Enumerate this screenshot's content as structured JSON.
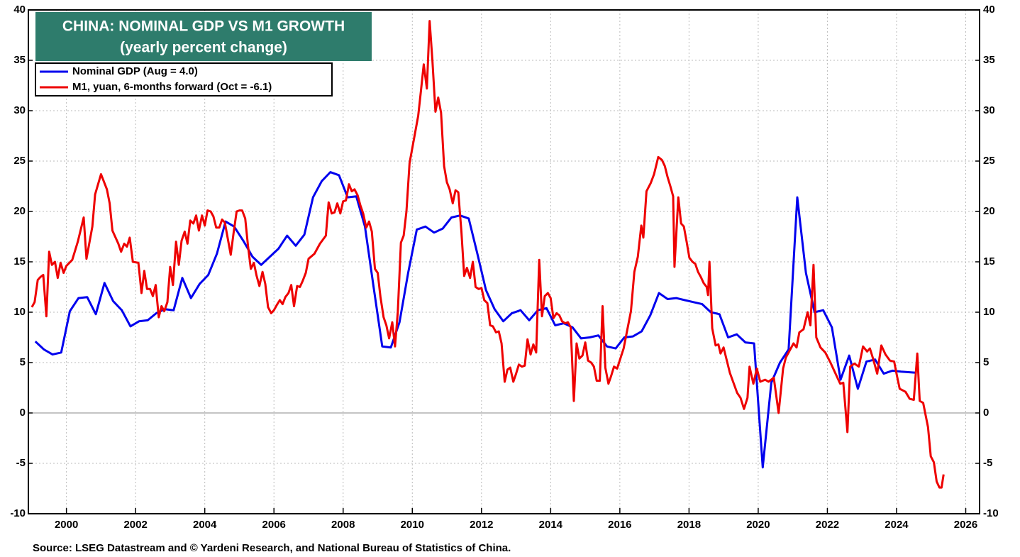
{
  "chart_data": {
    "type": "line",
    "title": "CHINA: NOMINAL GDP VS M1 GROWTH",
    "subtitle": "(yearly percent change)",
    "source": "Source: LSEG Datastream and © Yardeni Research, and National Bureau of Statistics of China.",
    "xlim": [
      1998.9,
      2026.4
    ],
    "xticks": [
      2000,
      2002,
      2004,
      2006,
      2008,
      2010,
      2012,
      2014,
      2016,
      2018,
      2020,
      2022,
      2024,
      2026
    ],
    "ylim": [
      -10,
      40
    ],
    "yticks": [
      -10,
      -5,
      0,
      5,
      10,
      15,
      20,
      25,
      30,
      35,
      40
    ],
    "grid": true,
    "legend": "upper left",
    "series": [
      {
        "name": "Nominal GDP (Aug = 4.0)",
        "color": "#0000ee",
        "x": [
          1999.1,
          1999.35,
          1999.6,
          1999.85,
          2000.1,
          2000.35,
          2000.6,
          2000.85,
          2001.1,
          2001.35,
          2001.6,
          2001.85,
          2002.1,
          2002.35,
          2002.6,
          2002.85,
          2003.1,
          2003.35,
          2003.6,
          2003.85,
          2004.1,
          2004.35,
          2004.6,
          2004.85,
          2005.13,
          2005.38,
          2005.63,
          2005.88,
          2006.13,
          2006.38,
          2006.63,
          2006.88,
          2007.13,
          2007.38,
          2007.63,
          2007.88,
          2008.13,
          2008.38,
          2008.63,
          2008.88,
          2009.13,
          2009.38,
          2009.63,
          2009.88,
          2010.13,
          2010.38,
          2010.63,
          2010.88,
          2011.13,
          2011.38,
          2011.63,
          2011.88,
          2012.13,
          2012.38,
          2012.63,
          2012.88,
          2013.13,
          2013.38,
          2013.63,
          2013.88,
          2014.13,
          2014.38,
          2014.63,
          2014.88,
          2015.13,
          2015.38,
          2015.63,
          2015.88,
          2016.13,
          2016.38,
          2016.63,
          2016.88,
          2017.13,
          2017.38,
          2017.63,
          2017.88,
          2018.13,
          2018.38,
          2018.63,
          2018.88,
          2019.13,
          2019.38,
          2019.63,
          2019.88,
          2020.13,
          2020.38,
          2020.63,
          2020.88,
          2021.13,
          2021.38,
          2021.63,
          2021.88,
          2022.13,
          2022.38,
          2022.63,
          2022.88,
          2023.13,
          2023.38,
          2023.63,
          2023.88,
          2024.13,
          2024.55
        ],
        "values": [
          7.1,
          6.3,
          5.8,
          6.0,
          10.1,
          11.4,
          11.5,
          9.8,
          12.9,
          11.1,
          10.2,
          8.6,
          9.1,
          9.2,
          9.9,
          10.3,
          10.2,
          13.4,
          11.4,
          12.8,
          13.7,
          15.8,
          19.0,
          18.5,
          17.0,
          15.5,
          14.7,
          15.5,
          16.3,
          17.6,
          16.6,
          17.7,
          21.4,
          23.0,
          23.9,
          23.6,
          21.4,
          21.5,
          18.5,
          12.5,
          6.6,
          6.5,
          9.0,
          13.9,
          18.2,
          18.5,
          17.9,
          18.3,
          19.4,
          19.6,
          19.3,
          15.8,
          12.2,
          10.3,
          9.1,
          9.9,
          10.2,
          9.2,
          10.2,
          10.4,
          8.7,
          8.9,
          8.5,
          7.4,
          7.5,
          7.7,
          6.6,
          6.4,
          7.5,
          7.6,
          8.1,
          9.7,
          11.9,
          11.3,
          11.4,
          11.2,
          11.0,
          10.8,
          10.0,
          9.8,
          7.5,
          7.8,
          7.0,
          6.9,
          -5.4,
          3.0,
          5.0,
          6.3,
          21.4,
          13.9,
          10.0,
          10.2,
          8.5,
          3.3,
          5.7,
          2.4,
          5.1,
          5.3,
          3.9,
          4.2,
          4.1,
          4.0
        ]
      },
      {
        "name": "M1, yuan, 6-months forward (Oct = -6.1)",
        "color": "#ee0000",
        "x": [
          1999.0,
          1999.08,
          1999.17,
          1999.25,
          1999.33,
          1999.42,
          1999.5,
          1999.58,
          1999.67,
          1999.75,
          1999.83,
          1999.92,
          2000.0,
          2000.17,
          2000.33,
          2000.5,
          2000.58,
          2000.75,
          2000.83,
          2001.0,
          2001.17,
          2001.25,
          2001.33,
          2001.5,
          2001.58,
          2001.67,
          2001.75,
          2001.83,
          2001.92,
          2002.08,
          2002.17,
          2002.25,
          2002.33,
          2002.42,
          2002.5,
          2002.58,
          2002.67,
          2002.75,
          2002.83,
          2002.92,
          2003.0,
          2003.08,
          2003.17,
          2003.25,
          2003.33,
          2003.42,
          2003.5,
          2003.58,
          2003.67,
          2003.75,
          2003.83,
          2003.92,
          2004.0,
          2004.08,
          2004.17,
          2004.25,
          2004.33,
          2004.42,
          2004.5,
          2004.58,
          2004.67,
          2004.75,
          2004.83,
          2004.92,
          2005.0,
          2005.08,
          2005.17,
          2005.25,
          2005.33,
          2005.42,
          2005.5,
          2005.58,
          2005.67,
          2005.75,
          2005.83,
          2005.92,
          2006.0,
          2006.08,
          2006.17,
          2006.25,
          2006.33,
          2006.42,
          2006.5,
          2006.58,
          2006.67,
          2006.75,
          2006.83,
          2006.92,
          2007.0,
          2007.17,
          2007.33,
          2007.5,
          2007.58,
          2007.67,
          2007.75,
          2007.83,
          2007.92,
          2008.0,
          2008.08,
          2008.17,
          2008.25,
          2008.33,
          2008.42,
          2008.5,
          2008.58,
          2008.67,
          2008.75,
          2008.83,
          2008.92,
          2009.0,
          2009.08,
          2009.17,
          2009.25,
          2009.33,
          2009.42,
          2009.5,
          2009.58,
          2009.67,
          2009.75,
          2009.83,
          2009.92,
          2010.0,
          2010.08,
          2010.17,
          2010.25,
          2010.33,
          2010.42,
          2010.5,
          2010.58,
          2010.67,
          2010.75,
          2010.83,
          2010.92,
          2011.0,
          2011.08,
          2011.17,
          2011.25,
          2011.33,
          2011.42,
          2011.5,
          2011.58,
          2011.67,
          2011.75,
          2011.83,
          2011.92,
          2012.0,
          2012.08,
          2012.17,
          2012.25,
          2012.33,
          2012.42,
          2012.5,
          2012.58,
          2012.67,
          2012.75,
          2012.83,
          2012.92,
          2013.0,
          2013.08,
          2013.17,
          2013.25,
          2013.33,
          2013.42,
          2013.5,
          2013.58,
          2013.67,
          2013.75,
          2013.83,
          2013.92,
          2014.0,
          2014.08,
          2014.17,
          2014.25,
          2014.33,
          2014.42,
          2014.5,
          2014.58,
          2014.67,
          2014.75,
          2014.83,
          2014.92,
          2015.0,
          2015.08,
          2015.17,
          2015.25,
          2015.33,
          2015.42,
          2015.5,
          2015.58,
          2015.67,
          2015.75,
          2015.83,
          2015.92,
          2016.11,
          2016.32,
          2016.42,
          2016.52,
          2016.62,
          2016.68,
          2016.77,
          2016.89,
          2016.99,
          2017.11,
          2017.22,
          2017.3,
          2017.38,
          2017.46,
          2017.54,
          2017.58,
          2017.69,
          2017.77,
          2017.85,
          2017.93,
          2018.01,
          2018.1,
          2018.18,
          2018.26,
          2018.34,
          2018.42,
          2018.51,
          2018.55,
          2018.59,
          2018.67,
          2018.77,
          2018.85,
          2018.91,
          2019.0,
          2019.18,
          2019.39,
          2019.49,
          2019.59,
          2019.69,
          2019.75,
          2019.86,
          2019.96,
          2020.06,
          2020.2,
          2020.3,
          2020.45,
          2020.59,
          2020.72,
          2020.8,
          2020.88,
          2021.02,
          2021.11,
          2021.19,
          2021.31,
          2021.43,
          2021.51,
          2021.6,
          2021.68,
          2021.8,
          2021.94,
          2022.09,
          2022.25,
          2022.37,
          2022.46,
          2022.58,
          2022.66,
          2022.78,
          2022.91,
          2023.03,
          2023.15,
          2023.23,
          2023.32,
          2023.44,
          2023.56,
          2023.68,
          2023.81,
          2023.93,
          2024.01,
          2024.09,
          2024.26,
          2024.38,
          2024.5,
          2024.6,
          2024.67,
          2024.77,
          2024.91,
          2024.99,
          2025.08,
          2025.16,
          2025.24,
          2025.3,
          2025.36
        ],
        "values": [
          10.5,
          11,
          13.2,
          13.5,
          13.7,
          9.6,
          16.0,
          14.7,
          15.0,
          13.4,
          14.9,
          13.9,
          14.6,
          15.2,
          17.0,
          19.4,
          15.3,
          18.5,
          21.7,
          23.7,
          22.2,
          20.8,
          18.1,
          16.8,
          16.0,
          16.8,
          16.5,
          17.4,
          15.0,
          14.9,
          11.9,
          14.1,
          12.3,
          12.3,
          11.6,
          12.7,
          9.5,
          10.6,
          10.1,
          11.0,
          14.5,
          12.7,
          17.0,
          14.7,
          17.1,
          18.0,
          16.8,
          19.1,
          18.8,
          19.6,
          18.1,
          19.6,
          18.6,
          20.1,
          20.0,
          19.5,
          18.4,
          18.4,
          19.2,
          18.9,
          17.2,
          15.7,
          17.8,
          20.0,
          20.1,
          20.1,
          19.3,
          16.6,
          14.3,
          14.9,
          13.6,
          12.6,
          14.0,
          12.8,
          10.5,
          9.9,
          10.2,
          10.7,
          11.2,
          10.8,
          11.5,
          11.9,
          12.7,
          10.6,
          12.6,
          12.5,
          13.1,
          13.9,
          15.3,
          15.8,
          16.8,
          17.6,
          20.9,
          19.8,
          19.9,
          20.8,
          19.8,
          21.0,
          21.1,
          22.7,
          22.0,
          22.2,
          21.6,
          20.6,
          19.8,
          18.4,
          19.0,
          18.0,
          14.3,
          13.9,
          11.5,
          9.5,
          8.7,
          7.4,
          9.0,
          6.6,
          10.0,
          16.9,
          17.6,
          20.0,
          24.8,
          26.3,
          27.8,
          29.5,
          32.0,
          34.6,
          32.2,
          38.9,
          35.0,
          29.9,
          31.3,
          29.8,
          24.5,
          22.9,
          22.2,
          20.8,
          22.1,
          21.9,
          18.0,
          13.6,
          14.4,
          13.4,
          15.0,
          12.5,
          12.3,
          12.4,
          11.2,
          10.9,
          8.7,
          8.6,
          8.0,
          8.1,
          6.9,
          3.1,
          4.3,
          4.5,
          3.1,
          3.9,
          4.8,
          4.6,
          4.7,
          7.3,
          5.8,
          6.8,
          6.0,
          15.2,
          9.6,
          11.6,
          11.9,
          11.4,
          9.4,
          9.9,
          9.7,
          9.1,
          8.9,
          9.0,
          8.5,
          1.2,
          6.9,
          5.4,
          5.7,
          7.0,
          5.2,
          5.0,
          4.6,
          3.2,
          3.2,
          10.6,
          4.5,
          2.9,
          3.7,
          4.6,
          4.4,
          6.4,
          10.1,
          14.0,
          15.5,
          18.6,
          17.4,
          22.0,
          22.8,
          23.7,
          25.4,
          25.1,
          24.5,
          23.4,
          22.5,
          21.5,
          14.5,
          21.4,
          18.8,
          18.5,
          17.0,
          15.4,
          15.0,
          14.8,
          14.0,
          13.5,
          12.9,
          12.5,
          11.7,
          15.0,
          8.4,
          6.7,
          6.8,
          5.9,
          6.5,
          4.0,
          2.0,
          1.5,
          0.4,
          1.5,
          4.6,
          2.9,
          4.4,
          3.1,
          3.3,
          3.1,
          3.5,
          0.0,
          4.4,
          5.5,
          6.0,
          6.9,
          6.5,
          8.0,
          8.3,
          10.0,
          8.7,
          14.7,
          7.5,
          6.5,
          6.0,
          5.0,
          3.8,
          2.9,
          3.0,
          -1.9,
          4.6,
          4.9,
          4.6,
          6.6,
          6.1,
          6.4,
          5.4,
          3.9,
          6.7,
          5.8,
          5.2,
          5.1,
          3.7,
          2.4,
          2.1,
          1.4,
          1.3,
          5.9,
          1.2,
          1.0,
          -1.4,
          -4.3,
          -4.9,
          -6.8,
          -7.4,
          -7.4,
          -6.1
        ]
      }
    ]
  }
}
